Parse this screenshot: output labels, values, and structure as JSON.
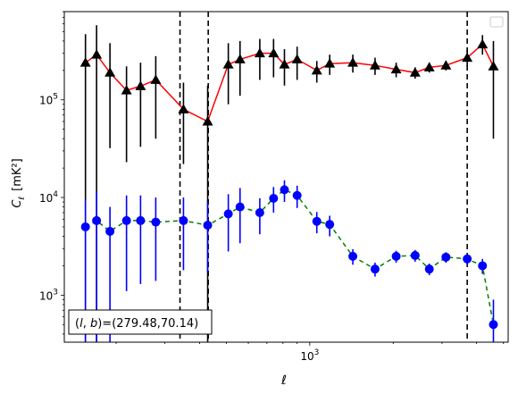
{
  "chart_data": {
    "type": "scatter",
    "title": "",
    "xlabel": "ℓ",
    "ylabel_main": "C",
    "ylabel_sub": "ℓ",
    "ylabel_unit": "[mK²]",
    "xscale": "log",
    "yscale": "log",
    "xlim": [
      130,
      5200
    ],
    "ylim": [
      330,
      800000
    ],
    "x_tick_labels": [
      {
        "value": 1000,
        "base": "10",
        "exp": "3"
      }
    ],
    "y_tick_labels": [
      {
        "value": 1000,
        "base": "10",
        "exp": "3"
      },
      {
        "value": 10000,
        "base": "10",
        "exp": "4"
      },
      {
        "value": 100000,
        "base": "10",
        "exp": "5"
      }
    ],
    "vlines": [
      340,
      430,
      3700
    ],
    "annotation": "(l, b)=(279.48,70.14)",
    "annotation_parts": {
      "l": "l",
      "comma": ", ",
      "b": "b",
      "rest": ")=(279.48,70.14)",
      "open": "("
    },
    "legend": "empty box, top-right",
    "colors": {
      "upper_marker": "#000000",
      "upper_line": "#ff0000",
      "lower_marker": "#0000ff",
      "lower_line": "#008000",
      "vline": "#000000"
    },
    "series": [
      {
        "marker": "triangle",
        "line": "solid",
        "points": [
          {
            "x": 155,
            "y": 240000,
            "lo": 330,
            "hi": 470000
          },
          {
            "x": 170,
            "y": 290000,
            "lo": 330,
            "hi": 580000
          },
          {
            "x": 190,
            "y": 190000,
            "lo": 32000,
            "hi": 380000
          },
          {
            "x": 218,
            "y": 125000,
            "lo": 23000,
            "hi": 220000
          },
          {
            "x": 245,
            "y": 138000,
            "lo": 33000,
            "hi": 240000
          },
          {
            "x": 278,
            "y": 160000,
            "lo": 40000,
            "hi": 280000
          },
          {
            "x": 350,
            "y": 80000,
            "lo": 22000,
            "hi": 150000
          },
          {
            "x": 428,
            "y": 60000,
            "lo": 330,
            "hi": 140000
          },
          {
            "x": 508,
            "y": 230000,
            "lo": 90000,
            "hi": 380000
          },
          {
            "x": 560,
            "y": 260000,
            "lo": 110000,
            "hi": 400000
          },
          {
            "x": 660,
            "y": 300000,
            "lo": 160000,
            "hi": 420000
          },
          {
            "x": 740,
            "y": 300000,
            "lo": 170000,
            "hi": 420000
          },
          {
            "x": 810,
            "y": 230000,
            "lo": 140000,
            "hi": 330000
          },
          {
            "x": 900,
            "y": 260000,
            "lo": 160000,
            "hi": 350000
          },
          {
            "x": 1060,
            "y": 200000,
            "lo": 150000,
            "hi": 250000
          },
          {
            "x": 1180,
            "y": 235000,
            "lo": 180000,
            "hi": 290000
          },
          {
            "x": 1430,
            "y": 240000,
            "lo": 190000,
            "hi": 290000
          },
          {
            "x": 1720,
            "y": 225000,
            "lo": 180000,
            "hi": 270000
          },
          {
            "x": 2050,
            "y": 205000,
            "lo": 170000,
            "hi": 240000
          },
          {
            "x": 2400,
            "y": 190000,
            "lo": 165000,
            "hi": 215000
          },
          {
            "x": 2700,
            "y": 215000,
            "lo": 190000,
            "hi": 240000
          },
          {
            "x": 3100,
            "y": 225000,
            "lo": 200000,
            "hi": 250000
          },
          {
            "x": 3700,
            "y": 270000,
            "lo": 220000,
            "hi": 330000
          },
          {
            "x": 4200,
            "y": 370000,
            "lo": 290000,
            "hi": 460000
          },
          {
            "x": 4600,
            "y": 220000,
            "lo": 40000,
            "hi": 400000
          }
        ]
      },
      {
        "marker": "circle",
        "line": "dashed",
        "points": [
          {
            "x": 155,
            "y": 5000,
            "lo": 330,
            "hi": 9500
          },
          {
            "x": 170,
            "y": 5800,
            "lo": 330,
            "hi": 11500
          },
          {
            "x": 190,
            "y": 4500,
            "lo": 330,
            "hi": 8000
          },
          {
            "x": 218,
            "y": 5800,
            "lo": 1100,
            "hi": 10500
          },
          {
            "x": 245,
            "y": 5800,
            "lo": 1300,
            "hi": 10500
          },
          {
            "x": 278,
            "y": 5600,
            "lo": 1400,
            "hi": 10000
          },
          {
            "x": 350,
            "y": 5800,
            "lo": 1800,
            "hi": 10000
          },
          {
            "x": 428,
            "y": 5200,
            "lo": 1700,
            "hi": 9000
          },
          {
            "x": 508,
            "y": 6800,
            "lo": 2800,
            "hi": 10800
          },
          {
            "x": 560,
            "y": 8000,
            "lo": 3400,
            "hi": 12500
          },
          {
            "x": 660,
            "y": 7000,
            "lo": 4200,
            "hi": 9800
          },
          {
            "x": 740,
            "y": 9800,
            "lo": 7000,
            "hi": 12800
          },
          {
            "x": 810,
            "y": 12000,
            "lo": 9000,
            "hi": 15000
          },
          {
            "x": 900,
            "y": 10500,
            "lo": 7800,
            "hi": 13200
          },
          {
            "x": 1060,
            "y": 5700,
            "lo": 4300,
            "hi": 7100
          },
          {
            "x": 1180,
            "y": 5300,
            "lo": 4000,
            "hi": 6500
          },
          {
            "x": 1430,
            "y": 2500,
            "lo": 2050,
            "hi": 2950
          },
          {
            "x": 1720,
            "y": 1850,
            "lo": 1550,
            "hi": 2150
          },
          {
            "x": 2050,
            "y": 2500,
            "lo": 2150,
            "hi": 2850
          },
          {
            "x": 2400,
            "y": 2550,
            "lo": 2200,
            "hi": 2900
          },
          {
            "x": 2700,
            "y": 1850,
            "lo": 1600,
            "hi": 2100
          },
          {
            "x": 3100,
            "y": 2450,
            "lo": 2150,
            "hi": 2750
          },
          {
            "x": 3700,
            "y": 2350,
            "lo": 2050,
            "hi": 2650
          },
          {
            "x": 4200,
            "y": 2000,
            "lo": 1650,
            "hi": 2350
          },
          {
            "x": 4600,
            "y": 500,
            "lo": 330,
            "hi": 900
          }
        ]
      }
    ]
  }
}
